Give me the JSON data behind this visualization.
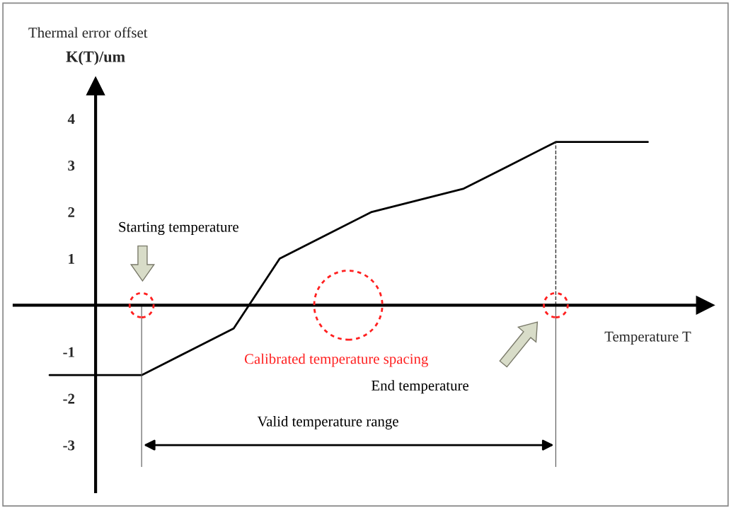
{
  "chart_data": {
    "type": "line",
    "title": "Thermal error offset",
    "ylabel": "K(T)/um",
    "xlabel": "Temperature T",
    "categories": [
      null,
      null,
      null,
      null,
      null,
      null,
      null,
      null,
      null,
      null,
      null,
      null,
      null,
      null
    ],
    "series": [
      {
        "color": "#000000",
        "values": [
          -1.5,
          -1.5,
          -1.5,
          -1,
          -0.5,
          1,
          1.5,
          2,
          2.25,
          2.5,
          3,
          3.5,
          3.5,
          3.5
        ]
      }
    ],
    "ylim": [
      -4,
      4.8
    ],
    "yticks": [
      -3,
      -2,
      -1,
      1,
      2,
      3,
      4
    ],
    "annotations": [
      "Starting temperature",
      "Calibrated temperature spacing",
      "End temperature",
      "Valid temperature range"
    ],
    "grid": false,
    "marker": "none",
    "line_style": "solid"
  }
}
